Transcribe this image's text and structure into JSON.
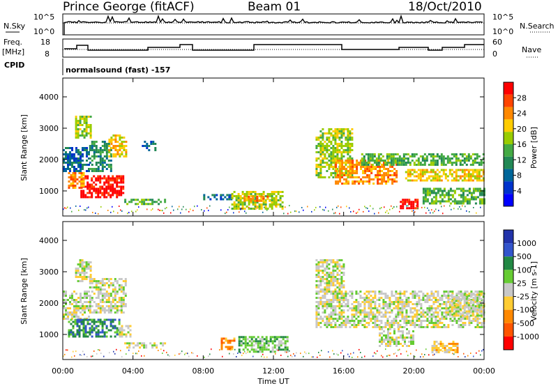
{
  "header": {
    "station": "Prince George (fitACF)",
    "beam": "Beam 01",
    "date": "18/Oct/2010"
  },
  "labels": {
    "nsky": "N.Sky",
    "nsearch": "N.Search",
    "freq": "Freq.",
    "mhz": "[MHz]",
    "nave": "Nave",
    "cpid": "CPID",
    "cpid_value": "normalsound (fast) -157",
    "nsky_ticks": [
      "10^5",
      "10^0"
    ],
    "nsearch_ticks": [
      "10^5",
      "10^0"
    ],
    "freq_ticks": [
      "18",
      "8"
    ],
    "nave_ticks": [
      "60",
      "0"
    ]
  },
  "colorbars": {
    "power": {
      "label": "Power [dB]",
      "ticks": [
        "28",
        "24",
        "20",
        "16",
        "12",
        "8",
        "4"
      ],
      "colors": [
        "#ff0000",
        "#ff4400",
        "#ff8800",
        "#ffcc00",
        "#99cc00",
        "#44aa44",
        "#228855",
        "#006699",
        "#0033cc",
        "#0000ff"
      ]
    },
    "velocity": {
      "label": "Velocity [m s-1]",
      "ticks": [
        "1000",
        "500",
        "100",
        "25",
        "-25",
        "-100",
        "-500",
        "-1000"
      ],
      "colors": [
        "#2233aa",
        "#3355cc",
        "#228844",
        "#66cc33",
        "#c8c8c8",
        "#ffcc33",
        "#ff8800",
        "#ff5500",
        "#ff0000"
      ]
    }
  },
  "chart_data": [
    {
      "type": "heatmap",
      "name": "power",
      "ylabel": "Slant Range [km]",
      "xlabel": "",
      "x_ticks": [
        "00:00",
        "04:00",
        "08:00",
        "12:00",
        "16:00",
        "20:00",
        "00:00"
      ],
      "xlim_hours": [
        0,
        24
      ],
      "ylim": [
        200,
        4600
      ],
      "y_ticks": [
        1000,
        2000,
        3000,
        4000
      ],
      "unit": "dB",
      "regions": [
        {
          "t0": 0.0,
          "t1": 1.5,
          "r0": 1600,
          "r1": 2400,
          "level": 2
        },
        {
          "t0": 0.7,
          "t1": 1.6,
          "r0": 2700,
          "r1": 3400,
          "level": 5
        },
        {
          "t0": 1.5,
          "t1": 2.8,
          "r0": 1600,
          "r1": 2600,
          "level": 3
        },
        {
          "t0": 2.6,
          "t1": 3.6,
          "r0": 2100,
          "r1": 2800,
          "level": 6
        },
        {
          "t0": 1.0,
          "t1": 3.5,
          "r0": 800,
          "r1": 1500,
          "level": 9
        },
        {
          "t0": 0.3,
          "t1": 1.2,
          "r0": 1100,
          "r1": 1600,
          "level": 7
        },
        {
          "t0": 3.5,
          "t1": 5.8,
          "r0": 550,
          "r1": 750,
          "level": 4
        },
        {
          "t0": 4.5,
          "t1": 5.3,
          "r0": 2300,
          "r1": 2600,
          "level": 2
        },
        {
          "t0": 8.0,
          "t1": 9.6,
          "r0": 700,
          "r1": 900,
          "level": 2
        },
        {
          "t0": 9.6,
          "t1": 12.5,
          "r0": 450,
          "r1": 1000,
          "level": 5
        },
        {
          "t0": 10.3,
          "t1": 11.8,
          "r0": 650,
          "r1": 850,
          "level": 7
        },
        {
          "t0": 14.4,
          "t1": 16.5,
          "r0": 1400,
          "r1": 3000,
          "level": 5
        },
        {
          "t0": 15.5,
          "t1": 19.0,
          "r0": 1200,
          "r1": 2000,
          "level": 7
        },
        {
          "t0": 17.0,
          "t1": 24.0,
          "r0": 1800,
          "r1": 2200,
          "level": 4
        },
        {
          "t0": 19.5,
          "t1": 24.0,
          "r0": 1300,
          "r1": 1700,
          "level": 6
        },
        {
          "t0": 19.2,
          "t1": 20.2,
          "r0": 450,
          "r1": 750,
          "level": 9
        },
        {
          "t0": 20.5,
          "t1": 24.0,
          "r0": 600,
          "r1": 1100,
          "level": 4
        }
      ]
    },
    {
      "type": "heatmap",
      "name": "velocity",
      "ylabel": "Slant Range [km]",
      "xlabel": "Time UT",
      "x_ticks": [
        "00:00",
        "04:00",
        "08:00",
        "12:00",
        "16:00",
        "20:00",
        "00:00"
      ],
      "xlim_hours": [
        0,
        24
      ],
      "ylim": [
        200,
        4600
      ],
      "y_ticks": [
        1000,
        2000,
        3000,
        4000
      ],
      "unit": "m s-1",
      "regions": [
        {
          "t0": 0.0,
          "t1": 1.5,
          "r0": 1500,
          "r1": 2400,
          "level": 4
        },
        {
          "t0": 0.7,
          "t1": 1.6,
          "r0": 2700,
          "r1": 3400,
          "level": 4
        },
        {
          "t0": 1.5,
          "t1": 3.6,
          "r0": 1700,
          "r1": 2800,
          "level": 4
        },
        {
          "t0": 0.3,
          "t1": 3.2,
          "r0": 900,
          "r1": 1500,
          "level": 6
        },
        {
          "t0": 3.2,
          "t1": 3.9,
          "r0": 900,
          "r1": 1300,
          "level": 4
        },
        {
          "t0": 3.5,
          "t1": 5.8,
          "r0": 550,
          "r1": 750,
          "level": 4
        },
        {
          "t0": 9.0,
          "t1": 9.8,
          "r0": 500,
          "r1": 900,
          "level": 2
        },
        {
          "t0": 10.0,
          "t1": 12.8,
          "r0": 450,
          "r1": 950,
          "level": 5
        },
        {
          "t0": 14.4,
          "t1": 24.0,
          "r0": 1200,
          "r1": 2400,
          "level": 4
        },
        {
          "t0": 14.4,
          "t1": 16.0,
          "r0": 2400,
          "r1": 3400,
          "level": 4
        },
        {
          "t0": 18.0,
          "t1": 20.0,
          "r0": 600,
          "r1": 1200,
          "level": 4
        },
        {
          "t0": 21.0,
          "t1": 22.5,
          "r0": 450,
          "r1": 800,
          "level": 3
        },
        {
          "t0": 22.0,
          "t1": 24.0,
          "r0": 1600,
          "r1": 2300,
          "level": 4
        }
      ]
    }
  ]
}
